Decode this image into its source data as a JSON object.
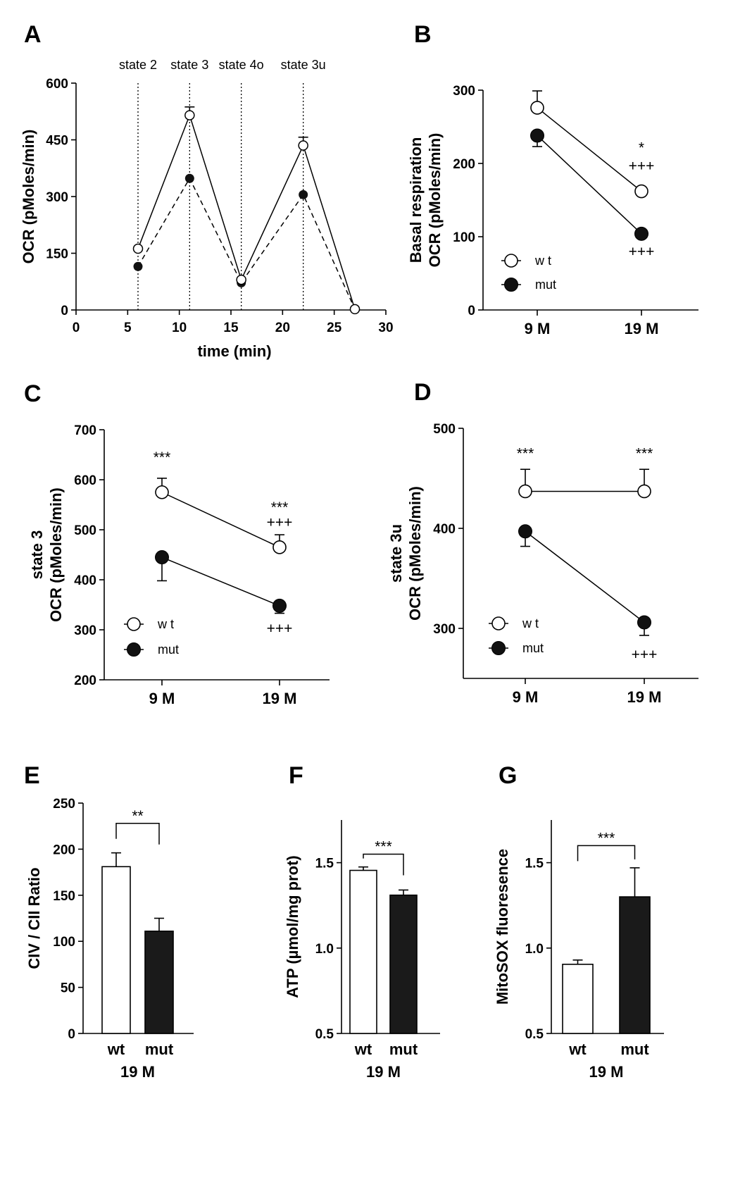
{
  "chart_data": [
    {
      "id": "A",
      "type": "line",
      "panel_label": "A",
      "xlabel": "time (min)",
      "ylabel": "OCR (pMoles/min)",
      "xlim": [
        0,
        30
      ],
      "ylim": [
        0,
        600
      ],
      "xticks": [
        0,
        5,
        10,
        15,
        20,
        25,
        30
      ],
      "yticks": [
        0,
        150,
        300,
        450,
        600
      ],
      "vlines": [
        {
          "x": 6,
          "label": "state 2"
        },
        {
          "x": 11,
          "label": "state 3"
        },
        {
          "x": 16,
          "label": "state 4o"
        },
        {
          "x": 22,
          "label": "state 3u"
        }
      ],
      "series": [
        {
          "name": "wt",
          "marker": "open-circle",
          "line": "solid",
          "x": [
            6,
            11,
            16,
            22,
            27
          ],
          "values": [
            162,
            515,
            80,
            435,
            2
          ],
          "err": [
            0,
            22,
            0,
            22,
            0
          ]
        },
        {
          "name": "mut",
          "marker": "filled-circle",
          "line": "dashed",
          "x": [
            6,
            11,
            16,
            22,
            27
          ],
          "values": [
            115,
            348,
            72,
            305,
            2
          ],
          "err": [
            0,
            0,
            0,
            0,
            0
          ]
        }
      ]
    },
    {
      "id": "B",
      "type": "line",
      "panel_label": "B",
      "ylabel_lines": [
        "Basal respiration",
        "OCR (pMoles/min)"
      ],
      "categories": [
        "9 M",
        "19 M"
      ],
      "ylim": [
        0,
        300
      ],
      "yticks": [
        0,
        100,
        200,
        300
      ],
      "legend": [
        {
          "name": "wt",
          "marker": "open-circle"
        },
        {
          "name": "mut",
          "marker": "filled-circle"
        }
      ],
      "series": [
        {
          "name": "wt",
          "marker": "open-circle",
          "values": [
            276,
            162
          ],
          "err": [
            23,
            0
          ],
          "err_dir": "up"
        },
        {
          "name": "mut",
          "marker": "filled-circle",
          "values": [
            238,
            104
          ],
          "err": [
            15,
            0
          ],
          "err_dir": "down"
        }
      ],
      "annotations": [
        {
          "text": "*",
          "cat": 1,
          "y": 215
        },
        {
          "text": "+++",
          "cat": 1,
          "y": 190
        },
        {
          "text": "+++",
          "cat": 1,
          "y": 73
        }
      ]
    },
    {
      "id": "C",
      "type": "line",
      "panel_label": "C",
      "ylabel_lines": [
        "state 3",
        "OCR (pMoles/min)"
      ],
      "categories": [
        "9 M",
        "19 M"
      ],
      "ylim": [
        200,
        700
      ],
      "yticks": [
        200,
        300,
        400,
        500,
        600,
        700
      ],
      "legend": [
        {
          "name": "wt",
          "marker": "open-circle"
        },
        {
          "name": "mut",
          "marker": "filled-circle"
        }
      ],
      "series": [
        {
          "name": "wt",
          "marker": "open-circle",
          "values": [
            575,
            465
          ],
          "err": [
            28,
            25
          ],
          "err_dir": "up"
        },
        {
          "name": "mut",
          "marker": "filled-circle",
          "values": [
            445,
            348
          ],
          "err": [
            47,
            15
          ],
          "err_dir": "down"
        }
      ],
      "annotations": [
        {
          "text": "***",
          "cat": 0,
          "y": 635
        },
        {
          "text": "***",
          "cat": 1,
          "y": 535
        },
        {
          "text": "+++",
          "cat": 1,
          "y": 505
        },
        {
          "text": "+++",
          "cat": 1,
          "y": 293
        }
      ]
    },
    {
      "id": "D",
      "type": "line",
      "panel_label": "D",
      "ylabel_lines": [
        "state 3u",
        "OCR (pMoles/min)"
      ],
      "categories": [
        "9 M",
        "19 M"
      ],
      "ylim": [
        250,
        500
      ],
      "yticks": [
        300,
        400,
        500
      ],
      "legend": [
        {
          "name": "wt",
          "marker": "open-circle"
        },
        {
          "name": "mut",
          "marker": "filled-circle"
        }
      ],
      "series": [
        {
          "name": "wt",
          "marker": "open-circle",
          "values": [
            437,
            437
          ],
          "err": [
            22,
            22
          ],
          "err_dir": "up"
        },
        {
          "name": "mut",
          "marker": "filled-circle",
          "values": [
            397,
            306
          ],
          "err": [
            15,
            13
          ],
          "err_dir": "down"
        }
      ],
      "annotations": [
        {
          "text": "***",
          "cat": 0,
          "y": 470
        },
        {
          "text": "***",
          "cat": 1,
          "y": 470
        },
        {
          "text": "+++",
          "cat": 1,
          "y": 269
        }
      ]
    },
    {
      "id": "E",
      "type": "bar",
      "panel_label": "E",
      "ylabel": "CIV / CII Ratio",
      "categories": [
        "wt",
        "mut"
      ],
      "group_label": "19 M",
      "ylim": [
        0,
        250
      ],
      "yticks": [
        0,
        50,
        100,
        150,
        200,
        250
      ],
      "values": [
        181,
        111
      ],
      "err": [
        15,
        14
      ],
      "fills": [
        "#ffffff",
        "#1a1a1a"
      ],
      "bracket": {
        "text": "**",
        "y": 228
      }
    },
    {
      "id": "F",
      "type": "bar",
      "panel_label": "F",
      "ylabel": "ATP (µmol/mg prot)",
      "categories": [
        "wt",
        "mut"
      ],
      "group_label": "19 M",
      "ylim": [
        0.5,
        1.75
      ],
      "yticks": [
        0.5,
        1.0,
        1.5
      ],
      "ytick_labels": [
        "0.5",
        "1.0",
        "1.5"
      ],
      "values": [
        1.455,
        1.31
      ],
      "err": [
        0.02,
        0.03
      ],
      "fills": [
        "#ffffff",
        "#1a1a1a"
      ],
      "bracket": {
        "text": "***",
        "y": 1.55
      }
    },
    {
      "id": "G",
      "type": "bar",
      "panel_label": "G",
      "ylabel": "MitoSOX fluoresence",
      "categories": [
        "wt",
        "mut"
      ],
      "group_label": "19 M",
      "ylim": [
        0.5,
        1.75
      ],
      "yticks": [
        0.5,
        1.0,
        1.5
      ],
      "ytick_labels": [
        "0.5",
        "1.0",
        "1.5"
      ],
      "values": [
        0.905,
        1.3
      ],
      "err": [
        0.025,
        0.17
      ],
      "fills": [
        "#ffffff",
        "#1a1a1a"
      ],
      "bracket": {
        "text": "***",
        "y": 1.6
      }
    }
  ]
}
